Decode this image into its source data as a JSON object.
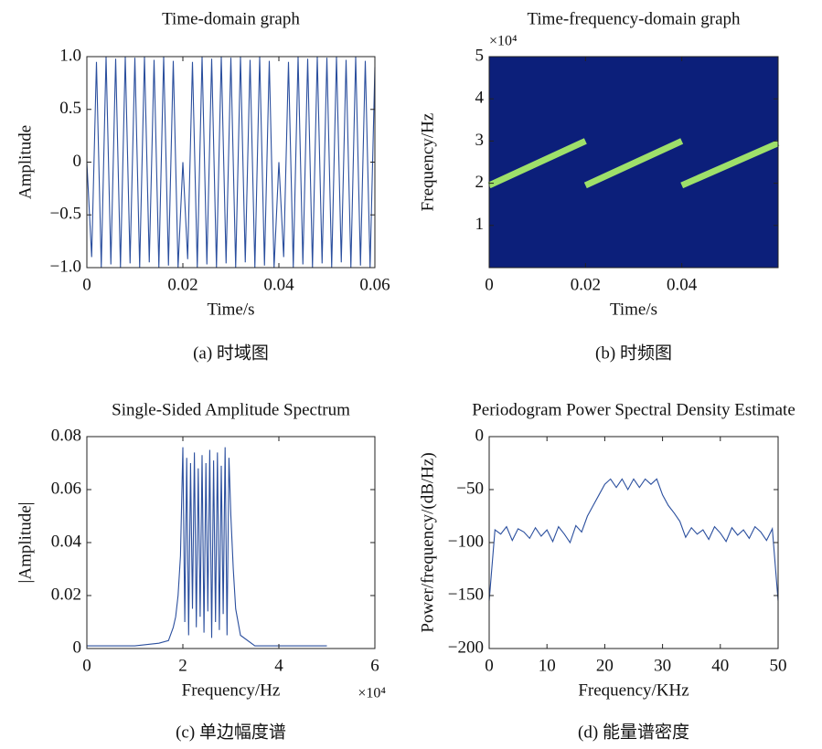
{
  "chart_data": [
    {
      "type": "line",
      "title": "Time-domain graph",
      "xlabel": "Time/s",
      "ylabel": "Amplitude",
      "caption": "(a)  时域图",
      "color": "#2b4f9e",
      "x": [
        0,
        0.001,
        0.002,
        0.003,
        0.004,
        0.005,
        0.006,
        0.007,
        0.008,
        0.009,
        0.01,
        0.011,
        0.012,
        0.013,
        0.014,
        0.015,
        0.016,
        0.017,
        0.018,
        0.019,
        0.02,
        0.021,
        0.022,
        0.023,
        0.024,
        0.025,
        0.026,
        0.027,
        0.028,
        0.029,
        0.03,
        0.031,
        0.032,
        0.033,
        0.034,
        0.035,
        0.036,
        0.037,
        0.038,
        0.039,
        0.04,
        0.041,
        0.042,
        0.043,
        0.044,
        0.045,
        0.046,
        0.047,
        0.048,
        0.049,
        0.05,
        0.051,
        0.052,
        0.053,
        0.054,
        0.055,
        0.056,
        0.057,
        0.058,
        0.059,
        0.06
      ],
      "values": [
        0,
        -0.9,
        0.95,
        -1,
        1,
        -0.97,
        0.98,
        -1,
        1,
        -0.96,
        0.99,
        -1,
        1,
        -0.95,
        0.97,
        -1,
        1,
        -0.98,
        0.96,
        -1,
        0,
        -0.92,
        0.95,
        -1,
        1,
        -0.97,
        0.98,
        -1,
        1,
        -0.96,
        0.99,
        -1,
        1,
        -0.95,
        0.97,
        -1,
        1,
        -0.98,
        0.96,
        -1,
        0,
        -0.9,
        0.95,
        -1,
        1,
        -0.97,
        0.98,
        -1,
        1,
        -0.96,
        0.99,
        -1,
        1,
        -0.95,
        0.97,
        -1,
        1,
        -0.98,
        0.96,
        -1,
        0.9
      ],
      "xlim": [
        0,
        0.06
      ],
      "ylim": [
        -1,
        1
      ],
      "xticks": [
        0,
        0.02,
        0.04,
        0.06
      ],
      "yticks": [
        {
          "value": -1,
          "label": "−1.0"
        },
        {
          "value": -0.5,
          "label": "−0.5"
        },
        0,
        0.5,
        {
          "value": 1,
          "label": "1.0"
        }
      ]
    },
    {
      "type": "spectrogram",
      "title": "Time-frequency-domain graph",
      "xlabel": "Time/s",
      "ylabel": "Frequency/Hz",
      "caption": "(b)  时频图",
      "color": "#9ee06a",
      "background": "#0c1f7a",
      "axis_multiplier": "×10⁴",
      "x": [
        0,
        0.02,
        0.02,
        0.02,
        0.04,
        0.04,
        0.04,
        0.06
      ],
      "values": [
        19500,
        30000,
        null,
        19500,
        30000,
        null,
        19500,
        29500
      ],
      "xlim": [
        0,
        0.06
      ],
      "ylim": [
        0,
        50000
      ],
      "xticks": [
        0,
        0.02,
        0.04
      ],
      "yticks": [
        {
          "value": 10000,
          "label": "1"
        },
        {
          "value": 20000,
          "label": "2"
        },
        {
          "value": 30000,
          "label": "3"
        },
        {
          "value": 40000,
          "label": "4"
        },
        {
          "value": 50000,
          "label": "5"
        }
      ]
    },
    {
      "type": "line",
      "title": "Single-Sided Amplitude Spectrum",
      "xlabel": "Frequency/Hz",
      "ylabel": "|Amplitude|",
      "caption": "(c)  单边幅度谱",
      "color": "#2b4f9e",
      "axis_multiplier": "×10⁴",
      "x": [
        0,
        10000,
        15000,
        17000,
        18000,
        18500,
        19000,
        19500,
        20000,
        20400,
        20800,
        21200,
        21600,
        22000,
        22400,
        22800,
        23200,
        23600,
        24000,
        24400,
        24800,
        25200,
        25600,
        26000,
        26400,
        26800,
        27200,
        27600,
        28000,
        28400,
        28800,
        29200,
        29600,
        30000,
        30500,
        31000,
        32000,
        35000,
        50000
      ],
      "values": [
        0.001,
        0.001,
        0.002,
        0.003,
        0.008,
        0.012,
        0.02,
        0.035,
        0.076,
        0.01,
        0.072,
        0.005,
        0.07,
        0.015,
        0.074,
        0.008,
        0.068,
        0.012,
        0.073,
        0.006,
        0.07,
        0.014,
        0.075,
        0.004,
        0.071,
        0.01,
        0.074,
        0.007,
        0.069,
        0.013,
        0.076,
        0.005,
        0.072,
        0.05,
        0.03,
        0.015,
        0.005,
        0.001,
        0.001
      ],
      "xlim": [
        0,
        60000
      ],
      "ylim": [
        0,
        0.08
      ],
      "xticks": [
        {
          "value": 0,
          "label": "0"
        },
        {
          "value": 20000,
          "label": "2"
        },
        {
          "value": 40000,
          "label": "4"
        },
        {
          "value": 60000,
          "label": "6"
        }
      ],
      "yticks": [
        0,
        0.02,
        0.04,
        0.06,
        0.08
      ]
    },
    {
      "type": "line",
      "title": "Periodogram Power Spectral Density Estimate",
      "xlabel": "Frequency/KHz",
      "ylabel": "Power/frequency/(dB/Hz)",
      "caption": "(d)  能量谱密度",
      "color": "#2b4f9e",
      "x": [
        0,
        1,
        2,
        3,
        4,
        5,
        6,
        7,
        8,
        9,
        10,
        11,
        12,
        13,
        14,
        15,
        16,
        17,
        18,
        19,
        20,
        21,
        22,
        23,
        24,
        25,
        26,
        27,
        28,
        29,
        30,
        31,
        32,
        33,
        34,
        35,
        36,
        37,
        38,
        39,
        40,
        41,
        42,
        43,
        44,
        45,
        46,
        47,
        48,
        49,
        50
      ],
      "values": [
        -155,
        -88,
        -92,
        -85,
        -98,
        -87,
        -90,
        -96,
        -86,
        -94,
        -88,
        -99,
        -85,
        -92,
        -100,
        -84,
        -90,
        -75,
        -65,
        -55,
        -45,
        -40,
        -48,
        -40,
        -50,
        -40,
        -48,
        -40,
        -45,
        -40,
        -55,
        -65,
        -72,
        -80,
        -95,
        -86,
        -92,
        -88,
        -97,
        -85,
        -91,
        -99,
        -86,
        -93,
        -88,
        -96,
        -85,
        -90,
        -98,
        -87,
        -155
      ],
      "xlim": [
        0,
        50
      ],
      "ylim": [
        -200,
        0
      ],
      "xticks": [
        0,
        10,
        20,
        30,
        40,
        50
      ],
      "yticks": [
        {
          "value": -200,
          "label": "−200"
        },
        {
          "value": -150,
          "label": "−150"
        },
        {
          "value": -100,
          "label": "−100"
        },
        {
          "value": -50,
          "label": "−50"
        },
        0
      ]
    }
  ]
}
